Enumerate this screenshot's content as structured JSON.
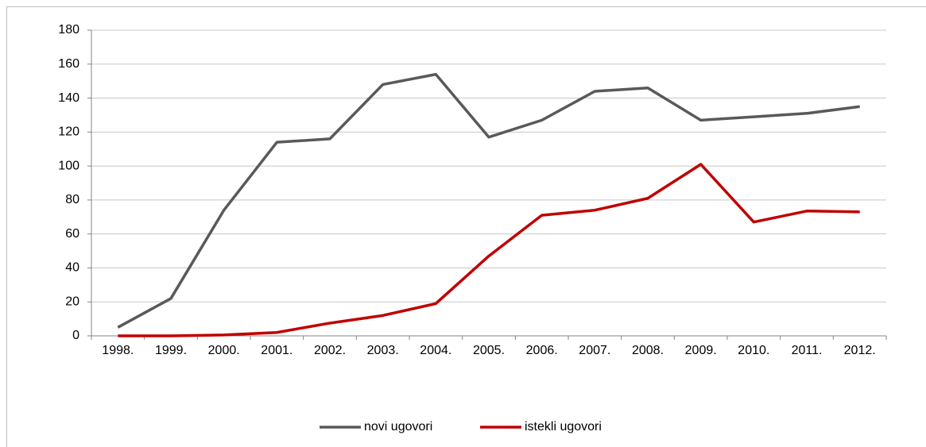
{
  "chart_data": {
    "type": "line",
    "categories": [
      "1998.",
      "1999.",
      "2000.",
      "2001.",
      "2002.",
      "2003.",
      "2004.",
      "2005.",
      "2006.",
      "2007.",
      "2008.",
      "2009.",
      "2010.",
      "2011.",
      "2012."
    ],
    "series": [
      {
        "name": "novi ugovori",
        "color": "#595959",
        "values": [
          5,
          22,
          74,
          114,
          116,
          148,
          154,
          117,
          127,
          144,
          146,
          127,
          129,
          131,
          135
        ]
      },
      {
        "name": "istekli ugovori",
        "color": "#c00000",
        "values": [
          0,
          0,
          0.5,
          2,
          7.5,
          12,
          19,
          47,
          71,
          74,
          81,
          101,
          67,
          73.5,
          73
        ]
      }
    ],
    "ylim": [
      0,
      180
    ],
    "yticks": [
      0,
      20,
      40,
      60,
      80,
      100,
      120,
      140,
      160,
      180
    ],
    "grid": true,
    "legend": "bottom"
  }
}
